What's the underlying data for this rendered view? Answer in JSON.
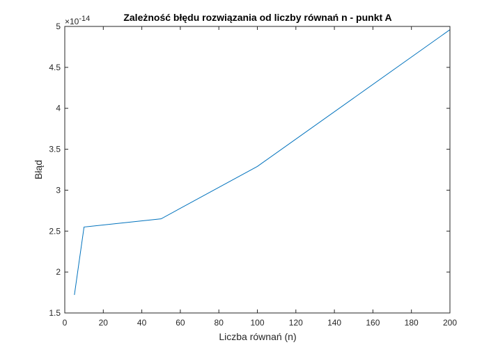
{
  "chart_data": {
    "type": "line",
    "title": "Zależność błędu rozwiązania od liczby równań n - punkt A",
    "xlabel": "Liczba równań (n)",
    "ylabel": "Błąd",
    "y_multiplier_label": "×10",
    "y_multiplier_exponent": "-14",
    "xlim": [
      0,
      200
    ],
    "ylim": [
      1.5,
      5
    ],
    "x_ticks": [
      0,
      20,
      40,
      60,
      80,
      100,
      120,
      140,
      160,
      180,
      200
    ],
    "y_ticks": [
      1.5,
      2,
      2.5,
      3,
      3.5,
      4,
      4.5,
      5
    ],
    "x_tick_labels": [
      "0",
      "20",
      "40",
      "60",
      "80",
      "100",
      "120",
      "140",
      "160",
      "180",
      "200"
    ],
    "y_tick_labels": [
      "1.5",
      "2",
      "2.5",
      "3",
      "3.5",
      "4",
      "4.5",
      "5"
    ],
    "grid": false,
    "series": [
      {
        "x": [
          5,
          10,
          50,
          100,
          200
        ],
        "y": [
          1.72,
          2.55,
          2.65,
          3.29,
          4.96
        ],
        "color": "#0072BD"
      }
    ]
  }
}
